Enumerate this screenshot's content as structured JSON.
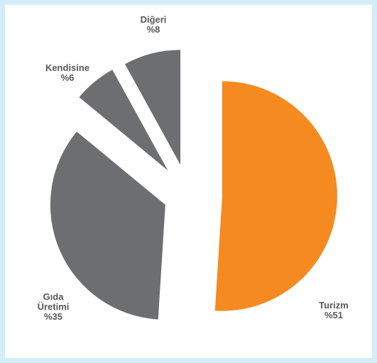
{
  "chart_data": {
    "type": "pie",
    "categories": [
      "Turizm",
      "Gıda Üretimi",
      "Kendisine",
      "Diğeri"
    ],
    "values": [
      51,
      35,
      6,
      8
    ],
    "value_labels": [
      "%51",
      "%35",
      "%6",
      "%8"
    ],
    "colors": [
      "#f58a21",
      "#6d6e71",
      "#6d6e71",
      "#6d6e71"
    ]
  }
}
